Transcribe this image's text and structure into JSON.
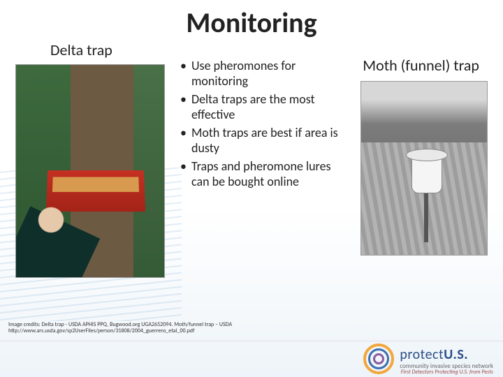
{
  "title": "Monitoring",
  "left_caption": "Delta trap",
  "right_caption": "Moth (funnel) trap",
  "bullets": [
    "Use pheromones for monitoring",
    "Delta traps are the most effective",
    "Moth traps are best if area is dusty",
    "Traps and pheromone lures can be bought online"
  ],
  "credits_line1": "Image credits: Delta trap - USDA APHIS PPQ, Bugwood.org UGA2652094. Moth/funnel trap – USDA",
  "credits_line2": "http://www.ars.usda.gov/sp2UserFiles/person/31808/2004_guerrero_etal_00.pdf",
  "footer": {
    "brand_prefix": "protect",
    "brand_suffix": "U.S.",
    "subtitle": "community invasive species network",
    "tagline": "First Detectors Protecting U.S. from Pests"
  },
  "colors": {
    "title": "#222222",
    "accent_red": "#c53022",
    "logo_orange": "#f2a63c",
    "logo_blue": "#3b6fb0",
    "logo_purple": "#8a5a9e"
  }
}
